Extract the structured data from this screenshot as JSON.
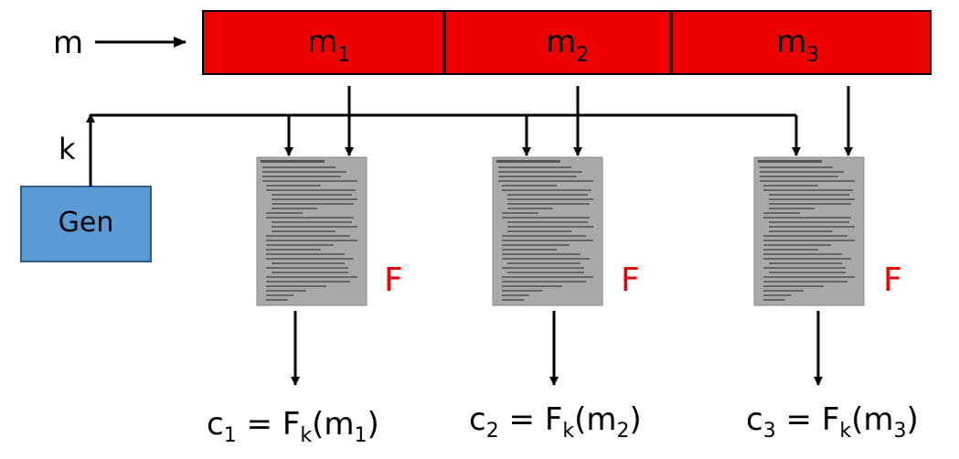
{
  "colors": {
    "message_fill": "#ee0000",
    "gen_fill": "#5b9bd5",
    "f_label": "#ee0000",
    "doc_fill": "#a9a9a9",
    "line": "#000000"
  },
  "message": {
    "label": "m",
    "blocks": [
      {
        "base": "m",
        "sub": "1"
      },
      {
        "base": "m",
        "sub": "2"
      },
      {
        "base": "m",
        "sub": "3"
      }
    ]
  },
  "generator": {
    "label": "Gen",
    "key_label": "k"
  },
  "functions": [
    {
      "label": "F",
      "output": {
        "c": "c",
        "c_sub": "1",
        "eq": " = ",
        "f": "F",
        "f_sub": "k",
        "lp": "(",
        "m": "m",
        "m_sub": "1",
        "rp": ")"
      }
    },
    {
      "label": "F",
      "output": {
        "c": "c",
        "c_sub": "2",
        "eq": " = ",
        "f": "F",
        "f_sub": "k",
        "lp": "(",
        "m": "m",
        "m_sub": "2",
        "rp": ")"
      }
    },
    {
      "label": "F",
      "output": {
        "c": "c",
        "c_sub": "3",
        "eq": " = ",
        "f": "F",
        "f_sub": "k",
        "lp": "(",
        "m": "m",
        "m_sub": "3",
        "rp": ")"
      }
    }
  ]
}
